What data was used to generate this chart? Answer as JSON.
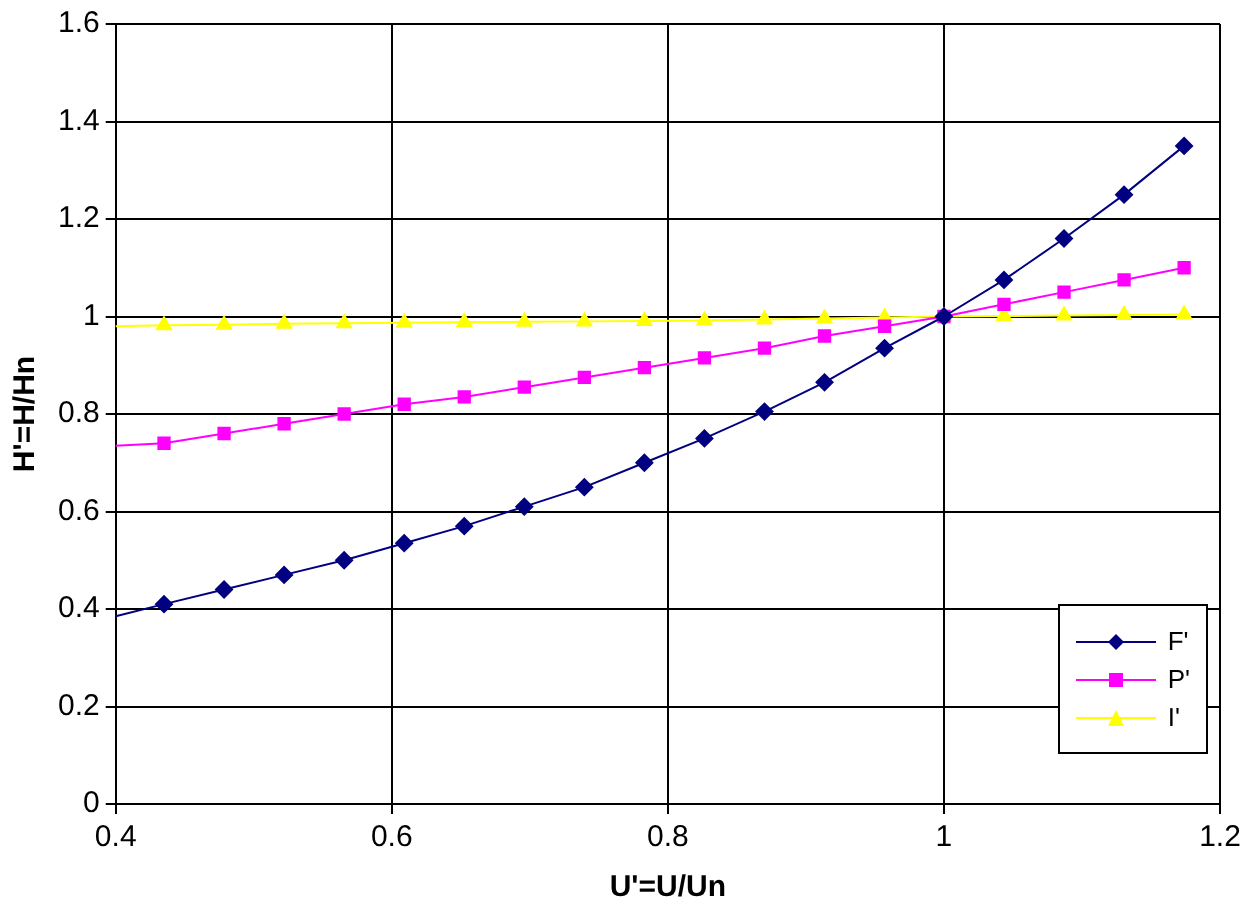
{
  "chart_data": {
    "type": "line",
    "xlabel": "U'=U/Un",
    "ylabel": "H'=H/Hn",
    "x": [
      0.4,
      0.435,
      0.4785,
      0.522,
      0.5655,
      0.609,
      0.6525,
      0.696,
      0.7395,
      0.783,
      0.8265,
      0.87,
      0.9135,
      0.957,
      1.0,
      1.0435,
      1.087,
      1.1305,
      1.174
    ],
    "series": [
      {
        "name": "F'",
        "color": "#000080",
        "marker": "diamond",
        "values": [
          0.385,
          0.41,
          0.44,
          0.47,
          0.5,
          0.535,
          0.57,
          0.61,
          0.65,
          0.7,
          0.75,
          0.805,
          0.865,
          0.935,
          1.0,
          1.075,
          1.16,
          1.25,
          1.35
        ]
      },
      {
        "name": "P'",
        "color": "#ff00ff",
        "marker": "square",
        "values": [
          0.735,
          0.74,
          0.76,
          0.78,
          0.8,
          0.82,
          0.835,
          0.855,
          0.875,
          0.895,
          0.915,
          0.935,
          0.96,
          0.98,
          1.0,
          1.025,
          1.05,
          1.075,
          1.1
        ]
      },
      {
        "name": "I'",
        "color": "#ffff00",
        "marker": "triangle",
        "values": [
          0.98,
          0.982,
          0.983,
          0.985,
          0.986,
          0.987,
          0.988,
          0.989,
          0.99,
          0.991,
          0.992,
          0.994,
          0.996,
          0.998,
          1.0,
          1.001,
          1.002,
          1.003,
          1.004
        ]
      }
    ],
    "xlim": [
      0.4,
      1.2
    ],
    "xticks": [
      0.4,
      0.6,
      0.8,
      1,
      1.2
    ],
    "ylim": [
      0,
      1.6
    ],
    "yticks": [
      0,
      0.2,
      0.4,
      0.6,
      0.8,
      1,
      1.2,
      1.4,
      1.6
    ],
    "grid": true,
    "legend": "bottom right"
  }
}
